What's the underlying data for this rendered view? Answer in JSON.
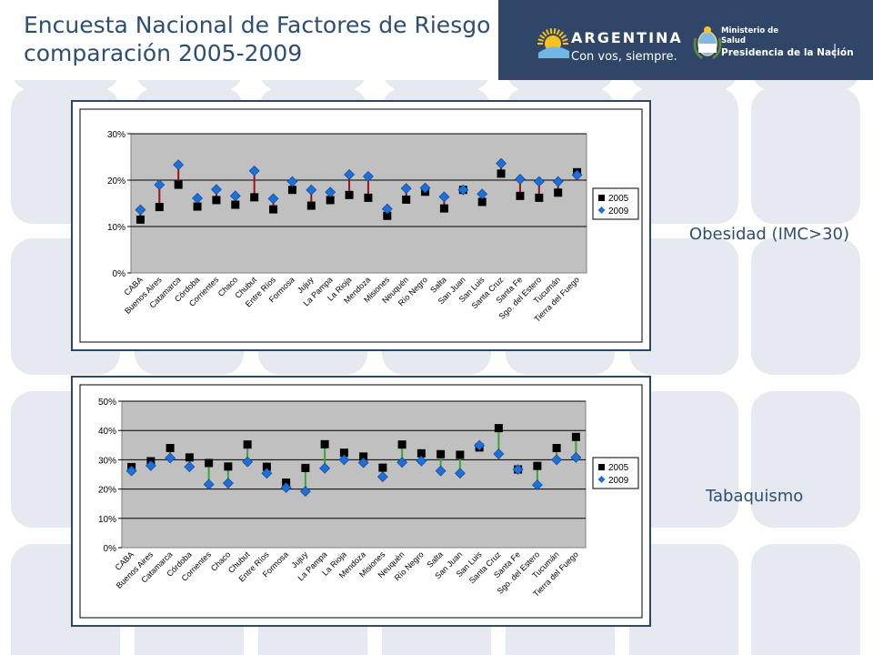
{
  "header": {
    "title_line1": "Encuesta Nacional de Factores de Riesgo",
    "title_line2": "comparación 2005-2009",
    "logo_argentina": "ARGENTINA",
    "logo_slogan": "Con vos, siempre.",
    "logo_ministerio_line1": "Ministerio de",
    "logo_ministerio_line2": "Salud",
    "logo_presidencia": "Presidencia de la Nación"
  },
  "labels": {
    "obesidad": "Obesidad (IMC>30)",
    "tabaquismo": "Tabaquismo"
  },
  "colors": {
    "title": "#2d4e73",
    "plot_bg": "#c0c0c0",
    "series_2005": "#000000",
    "series_2009": "#1e6fd9",
    "obesidad_connector": "#a01010",
    "tabaquismo_connector": "#38a832",
    "header_logo_bg": "#2f4669"
  },
  "chart_data": [
    {
      "type": "scatter",
      "title": "",
      "xlabel": "",
      "ylabel": "",
      "ylim": [
        0,
        30
      ],
      "yticks": [
        0,
        10,
        20,
        30
      ],
      "yticks_labels": [
        "0%",
        "10%",
        "20%",
        "30%"
      ],
      "grid": true,
      "legend_position": "right",
      "categories": [
        "CABA",
        "Buenos Aires",
        "Catamarca",
        "Córdoba",
        "Corrientes",
        "Chaco",
        "Chubut",
        "Entre Ríos",
        "Formosa",
        "Jujuy",
        "La Pampa",
        "La Rioja",
        "Mendoza",
        "Misiones",
        "Neuquén",
        "Río Negro",
        "Salta",
        "San Juan",
        "San Luis",
        "Santa Cruz",
        "Santa Fe",
        "Sgo. del Estero",
        "Tucumán",
        "Tierra del Fuego"
      ],
      "series": [
        {
          "name": "2005",
          "marker": "square",
          "values": [
            11.5,
            14.2,
            19.0,
            14.3,
            15.7,
            14.7,
            16.3,
            13.7,
            17.9,
            14.5,
            15.7,
            16.8,
            16.2,
            12.3,
            15.8,
            17.5,
            13.9,
            17.9,
            15.3,
            21.4,
            16.6,
            16.2,
            17.3,
            21.7
          ]
        },
        {
          "name": "2009",
          "marker": "diamond",
          "values": [
            13.6,
            19.0,
            23.3,
            16.1,
            18.0,
            16.6,
            22.0,
            16.0,
            19.7,
            17.9,
            17.4,
            21.2,
            20.8,
            13.8,
            18.2,
            18.3,
            16.4,
            17.9,
            17.0,
            23.6,
            20.2,
            19.7,
            19.7,
            21.1
          ]
        }
      ]
    },
    {
      "type": "scatter",
      "title": "",
      "xlabel": "",
      "ylabel": "",
      "ylim": [
        0,
        50
      ],
      "yticks": [
        0,
        10,
        20,
        30,
        40,
        50
      ],
      "yticks_labels": [
        "0%",
        "10%",
        "20%",
        "30%",
        "40%",
        "50%"
      ],
      "grid": true,
      "legend_position": "right",
      "categories": [
        "CABA",
        "Buenos Aires",
        "Catamarca",
        "Córdoba",
        "Corrientes",
        "Chaco",
        "Chubut",
        "Entre Ríos",
        "Formosa",
        "Jujuy",
        "La Pampa",
        "La Rioja",
        "Mendoza",
        "Misiones",
        "Neuquén",
        "Río Negro",
        "Salta",
        "San Juan",
        "San Luis",
        "Santa Cruz",
        "Santa Fe",
        "Sgo. del Estero",
        "Tucumán",
        "Tierra del Fuego"
      ],
      "series": [
        {
          "name": "2005",
          "marker": "square",
          "values": [
            27.5,
            29.5,
            34.0,
            30.8,
            28.9,
            27.7,
            35.2,
            27.6,
            22.2,
            27.2,
            35.3,
            32.4,
            31.1,
            27.3,
            35.2,
            32.2,
            31.9,
            31.7,
            34.2,
            40.8,
            26.7,
            27.9,
            34.0,
            37.8
          ]
        },
        {
          "name": "2009",
          "marker": "diamond",
          "values": [
            26.2,
            28.0,
            30.6,
            27.6,
            21.6,
            22.0,
            29.3,
            25.4,
            20.5,
            19.2,
            27.1,
            30.0,
            29.0,
            24.2,
            29.1,
            29.6,
            26.2,
            25.4,
            34.9,
            32.0,
            26.7,
            21.4,
            30.0,
            30.8
          ]
        }
      ]
    }
  ]
}
